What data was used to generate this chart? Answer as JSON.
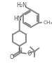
{
  "line_color": "#888888",
  "text_color": "#555555",
  "line_width": 1.4,
  "font_size": 5.8,
  "font_size_small": 5.2
}
